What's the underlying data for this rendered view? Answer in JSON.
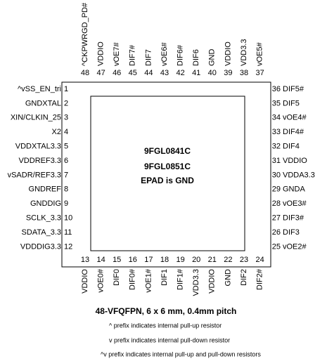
{
  "top_pins": [
    {
      "number": 48,
      "name": "^CKPWRGD_PD#"
    },
    {
      "number": 47,
      "name": "VDDIO"
    },
    {
      "number": 46,
      "name": "vOE7#"
    },
    {
      "number": 45,
      "name": "DIF7#"
    },
    {
      "number": 44,
      "name": "DIF7"
    },
    {
      "number": 43,
      "name": "vOE6#"
    },
    {
      "number": 42,
      "name": "DIF6#"
    },
    {
      "number": 41,
      "name": "DIF6"
    },
    {
      "number": 40,
      "name": "GND"
    },
    {
      "number": 39,
      "name": "VDDIO"
    },
    {
      "number": 38,
      "name": "VDD3.3"
    },
    {
      "number": 37,
      "name": "vOE5#"
    }
  ],
  "left_pins": [
    {
      "number": 1,
      "name": "^vSS_EN_tri"
    },
    {
      "number": 2,
      "name": "GNDXTAL"
    },
    {
      "number": 3,
      "name": "XIN/CLKIN_25"
    },
    {
      "number": 4,
      "name": "X2"
    },
    {
      "number": 5,
      "name": "VDDXTAL3.3"
    },
    {
      "number": 6,
      "name": "VDDREF3.3"
    },
    {
      "number": 7,
      "name": "vSADR/REF3.3"
    },
    {
      "number": 8,
      "name": "GNDREF"
    },
    {
      "number": 9,
      "name": "GNDDIG"
    },
    {
      "number": 10,
      "name": "SCLK_3.3"
    },
    {
      "number": 11,
      "name": "SDATA_3.3"
    },
    {
      "number": 12,
      "name": "VDDDIG3.3"
    }
  ],
  "right_pins": [
    {
      "number": 36,
      "name": "DIF5#"
    },
    {
      "number": 35,
      "name": "DIF5"
    },
    {
      "number": 34,
      "name": "vOE4#"
    },
    {
      "number": 33,
      "name": "DIF4#"
    },
    {
      "number": 32,
      "name": "DIF4"
    },
    {
      "number": 31,
      "name": "VDDIO"
    },
    {
      "number": 30,
      "name": "VDDA3.3"
    },
    {
      "number": 29,
      "name": "GNDA"
    },
    {
      "number": 28,
      "name": "vOE3#"
    },
    {
      "number": 27,
      "name": "DIF3#"
    },
    {
      "number": 26,
      "name": "DIF3"
    },
    {
      "number": 25,
      "name": "vOE2#"
    }
  ],
  "bottom_pins": [
    {
      "number": 13,
      "name": "VDDIO"
    },
    {
      "number": 14,
      "name": "vOE0#"
    },
    {
      "number": 15,
      "name": "DIF0"
    },
    {
      "number": 16,
      "name": "DIF0#"
    },
    {
      "number": 17,
      "name": "vOE1#"
    },
    {
      "number": 18,
      "name": "DIF1"
    },
    {
      "number": 19,
      "name": "DIF1#"
    },
    {
      "number": 20,
      "name": "VDD3.3"
    },
    {
      "number": 21,
      "name": "VDDIO"
    },
    {
      "number": 22,
      "name": "GND"
    },
    {
      "number": 23,
      "name": "DIF2"
    },
    {
      "number": 24,
      "name": "DIF2#"
    }
  ],
  "chip": {
    "labels": [
      "9FGL0841C",
      "9FGL0851C",
      "EPAD is GND"
    ]
  },
  "footer": {
    "package": "48-VFQFPN, 6 x 6 mm, 0.4mm pitch",
    "notes": [
      "^  prefix indicates internal pull-up resistor",
      "v  prefix indicates internal pull-down resistor",
      "^v  prefix indicates internal pull-up and pull-down resistors"
    ]
  }
}
